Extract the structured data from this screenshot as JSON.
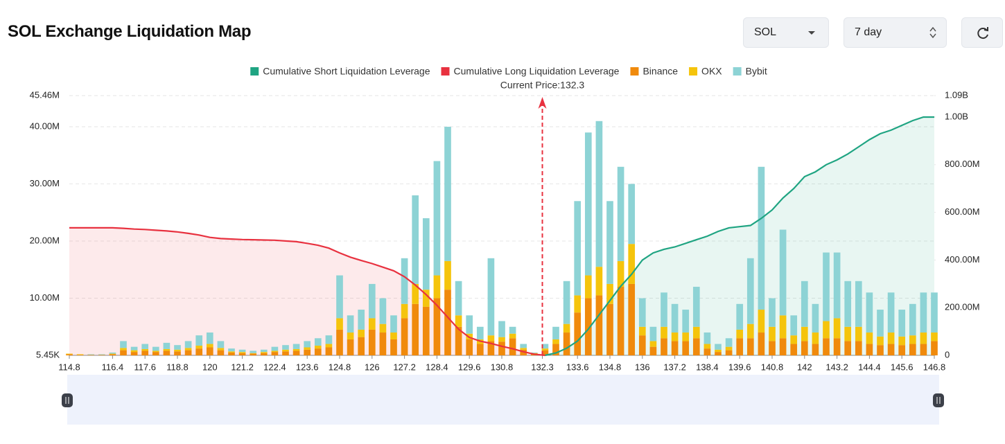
{
  "controls": {
    "symbol": "SOL",
    "period": "7 day"
  },
  "chart_data": {
    "type": "bar",
    "title": "SOL Exchange Liquidation Map",
    "annotation": {
      "text": "Current Price:132.3",
      "x": 132.3,
      "color": "#e8313f"
    },
    "x": [
      114.8,
      115.2,
      115.6,
      116.0,
      116.4,
      116.8,
      117.2,
      117.6,
      118.0,
      118.4,
      118.8,
      119.2,
      119.6,
      120.0,
      120.4,
      120.8,
      121.2,
      121.6,
      122.0,
      122.4,
      122.8,
      123.2,
      123.6,
      124.0,
      124.4,
      124.8,
      125.2,
      125.6,
      126.0,
      126.4,
      126.8,
      127.2,
      127.6,
      128.0,
      128.4,
      128.8,
      129.2,
      129.6,
      130.0,
      130.4,
      130.8,
      131.2,
      131.6,
      132.0,
      132.4,
      132.8,
      133.2,
      133.6,
      134.0,
      134.4,
      134.8,
      135.2,
      135.6,
      136.0,
      136.4,
      136.8,
      137.2,
      137.6,
      138.0,
      138.4,
      138.8,
      139.2,
      139.6,
      140.0,
      140.4,
      140.8,
      141.2,
      141.6,
      142.0,
      142.4,
      142.8,
      143.2,
      143.6,
      144.0,
      144.4,
      144.8,
      145.2,
      145.6,
      146.0,
      146.4,
      146.8
    ],
    "xlim": [
      114.8,
      146.8
    ],
    "xticks": [
      114.8,
      116.4,
      117.6,
      118.8,
      120,
      121.2,
      122.4,
      123.6,
      124.8,
      126,
      127.2,
      128.4,
      129.6,
      130.8,
      132.3,
      133.6,
      134.8,
      136,
      137.2,
      138.4,
      139.6,
      140.8,
      142,
      143.2,
      144.4,
      145.6,
      146.8
    ],
    "ylim": [
      0.00545,
      45.46
    ],
    "yticks": [
      {
        "value": 0.00545,
        "label": "5.45K"
      },
      {
        "value": 10,
        "label": "10.00M"
      },
      {
        "value": 20,
        "label": "20.00M"
      },
      {
        "value": 30,
        "label": "30.00M"
      },
      {
        "value": 40,
        "label": "40.00M"
      },
      {
        "value": 45.46,
        "label": "45.46M"
      }
    ],
    "y2lim": [
      0,
      1090
    ],
    "y2ticks": [
      0,
      {
        "value": 200,
        "label": "200.00M"
      },
      {
        "value": 400,
        "label": "400.00M"
      },
      {
        "value": 600,
        "label": "600.00M"
      },
      {
        "value": 800,
        "label": "800.00M"
      },
      {
        "value": 1000,
        "label": "1.00B"
      },
      {
        "value": 1090,
        "label": "1.09B"
      }
    ],
    "grid": true,
    "series": [
      {
        "name": "Cumulative Short Liquidation Leverage",
        "color": "#1fa482",
        "axis": "y2",
        "values": [
          null,
          null,
          null,
          null,
          null,
          null,
          null,
          null,
          null,
          null,
          null,
          null,
          null,
          null,
          null,
          null,
          null,
          null,
          null,
          null,
          null,
          null,
          null,
          null,
          null,
          null,
          null,
          null,
          null,
          null,
          null,
          null,
          null,
          null,
          null,
          null,
          null,
          null,
          null,
          null,
          null,
          null,
          null,
          null,
          0,
          10,
          30,
          60,
          110,
          170,
          230,
          290,
          340,
          400,
          430,
          445,
          455,
          470,
          485,
          500,
          520,
          535,
          540,
          545,
          575,
          610,
          660,
          700,
          750,
          770,
          800,
          820,
          845,
          875,
          905,
          930,
          945,
          965,
          985,
          1000,
          1000
        ]
      },
      {
        "name": "Cumulative Long Liquidation Leverage",
        "color": "#e8313f",
        "axis": "y2",
        "values": [
          535,
          535,
          535,
          535,
          535,
          533,
          530,
          528,
          525,
          522,
          518,
          512,
          505,
          495,
          490,
          488,
          486,
          485,
          484,
          483,
          480,
          477,
          470,
          462,
          450,
          430,
          412,
          398,
          385,
          370,
          355,
          330,
          295,
          255,
          210,
          160,
          110,
          75,
          60,
          50,
          38,
          28,
          15,
          5,
          0,
          null,
          null,
          null,
          null,
          null,
          null,
          null,
          null,
          null,
          null,
          null,
          null,
          null,
          null,
          null,
          null,
          null,
          null,
          null,
          null,
          null,
          null,
          null,
          null,
          null,
          null,
          null,
          null,
          null,
          null,
          null,
          null,
          null,
          null,
          null,
          null
        ]
      },
      {
        "name": "Binance",
        "color": "#f08a0c",
        "values": [
          0.2,
          0.1,
          0.1,
          0.1,
          0.2,
          0.9,
          0.6,
          0.8,
          0.6,
          0.8,
          0.7,
          0.9,
          1.2,
          1.4,
          0.9,
          0.5,
          0.4,
          0.3,
          0.4,
          0.6,
          0.7,
          0.8,
          1.0,
          1.2,
          1.4,
          4.5,
          2.8,
          3.2,
          4.5,
          4.0,
          2.8,
          6.5,
          9.0,
          8.5,
          10.0,
          11.5,
          5.0,
          2.8,
          2.0,
          2.5,
          2.4,
          3.0,
          1.0,
          0.3,
          0.9,
          2.0,
          4.0,
          7.5,
          10.0,
          10.5,
          9.0,
          12.0,
          12.5,
          3.5,
          1.5,
          3.0,
          2.5,
          2.5,
          3.0,
          1.2,
          0.6,
          0.9,
          3.0,
          3.0,
          4.0,
          2.5,
          3.0,
          2.0,
          2.5,
          2.0,
          3.0,
          3.0,
          2.5,
          2.5,
          2.0,
          1.8,
          2.0,
          1.8,
          2.0,
          2.0,
          2.5
        ]
      },
      {
        "name": "OKX",
        "color": "#f5c40c",
        "values": [
          0.1,
          0.1,
          0,
          0,
          0.1,
          0.4,
          0.3,
          0.3,
          0.2,
          0.3,
          0.3,
          0.4,
          0.5,
          0.6,
          0.4,
          0.2,
          0.2,
          0.1,
          0.2,
          0.2,
          0.3,
          0.3,
          0.4,
          0.5,
          0.6,
          2.0,
          1.2,
          1.3,
          2.0,
          1.5,
          1.2,
          2.5,
          3.5,
          3.0,
          4.0,
          5.0,
          2.0,
          1.0,
          0.8,
          1.0,
          0.8,
          0.8,
          0.3,
          0.1,
          0.3,
          0.8,
          1.5,
          3.0,
          4.0,
          5.0,
          3.5,
          4.5,
          7.0,
          1.5,
          1.0,
          2.0,
          1.5,
          1.5,
          2.0,
          0.8,
          0.4,
          0.6,
          1.5,
          2.5,
          4.0,
          2.5,
          4.0,
          1.5,
          2.5,
          2.0,
          3.0,
          3.5,
          2.5,
          2.5,
          2.0,
          1.5,
          2.0,
          1.5,
          1.5,
          2.0,
          1.5
        ]
      },
      {
        "name": "Bybit",
        "color": "#8dd3d5",
        "values": [
          0,
          0,
          0.1,
          0.1,
          0.2,
          1.2,
          0.6,
          0.9,
          0.7,
          1.1,
          0.8,
          1.2,
          1.8,
          2.0,
          1.2,
          0.5,
          0.4,
          0.4,
          0.4,
          0.7,
          0.8,
          0.9,
          1.1,
          1.3,
          1.5,
          7.5,
          3.0,
          3.5,
          6.0,
          4.5,
          3.0,
          8.0,
          15.5,
          12.5,
          20.0,
          23.5,
          6.0,
          3.2,
          2.2,
          13.5,
          2.8,
          1.2,
          0.7,
          0.1,
          0.8,
          2.2,
          7.5,
          16.5,
          25.0,
          25.5,
          14.5,
          16.5,
          10.5,
          5.0,
          2.5,
          6.0,
          5.0,
          4.0,
          7.0,
          2.0,
          1.0,
          1.5,
          4.5,
          11.5,
          25.0,
          5.0,
          15.0,
          3.5,
          8.0,
          5.0,
          12.0,
          11.5,
          8.0,
          8.0,
          7.0,
          4.7,
          7.0,
          4.7,
          5.5,
          7.0,
          7.0
        ]
      }
    ]
  }
}
